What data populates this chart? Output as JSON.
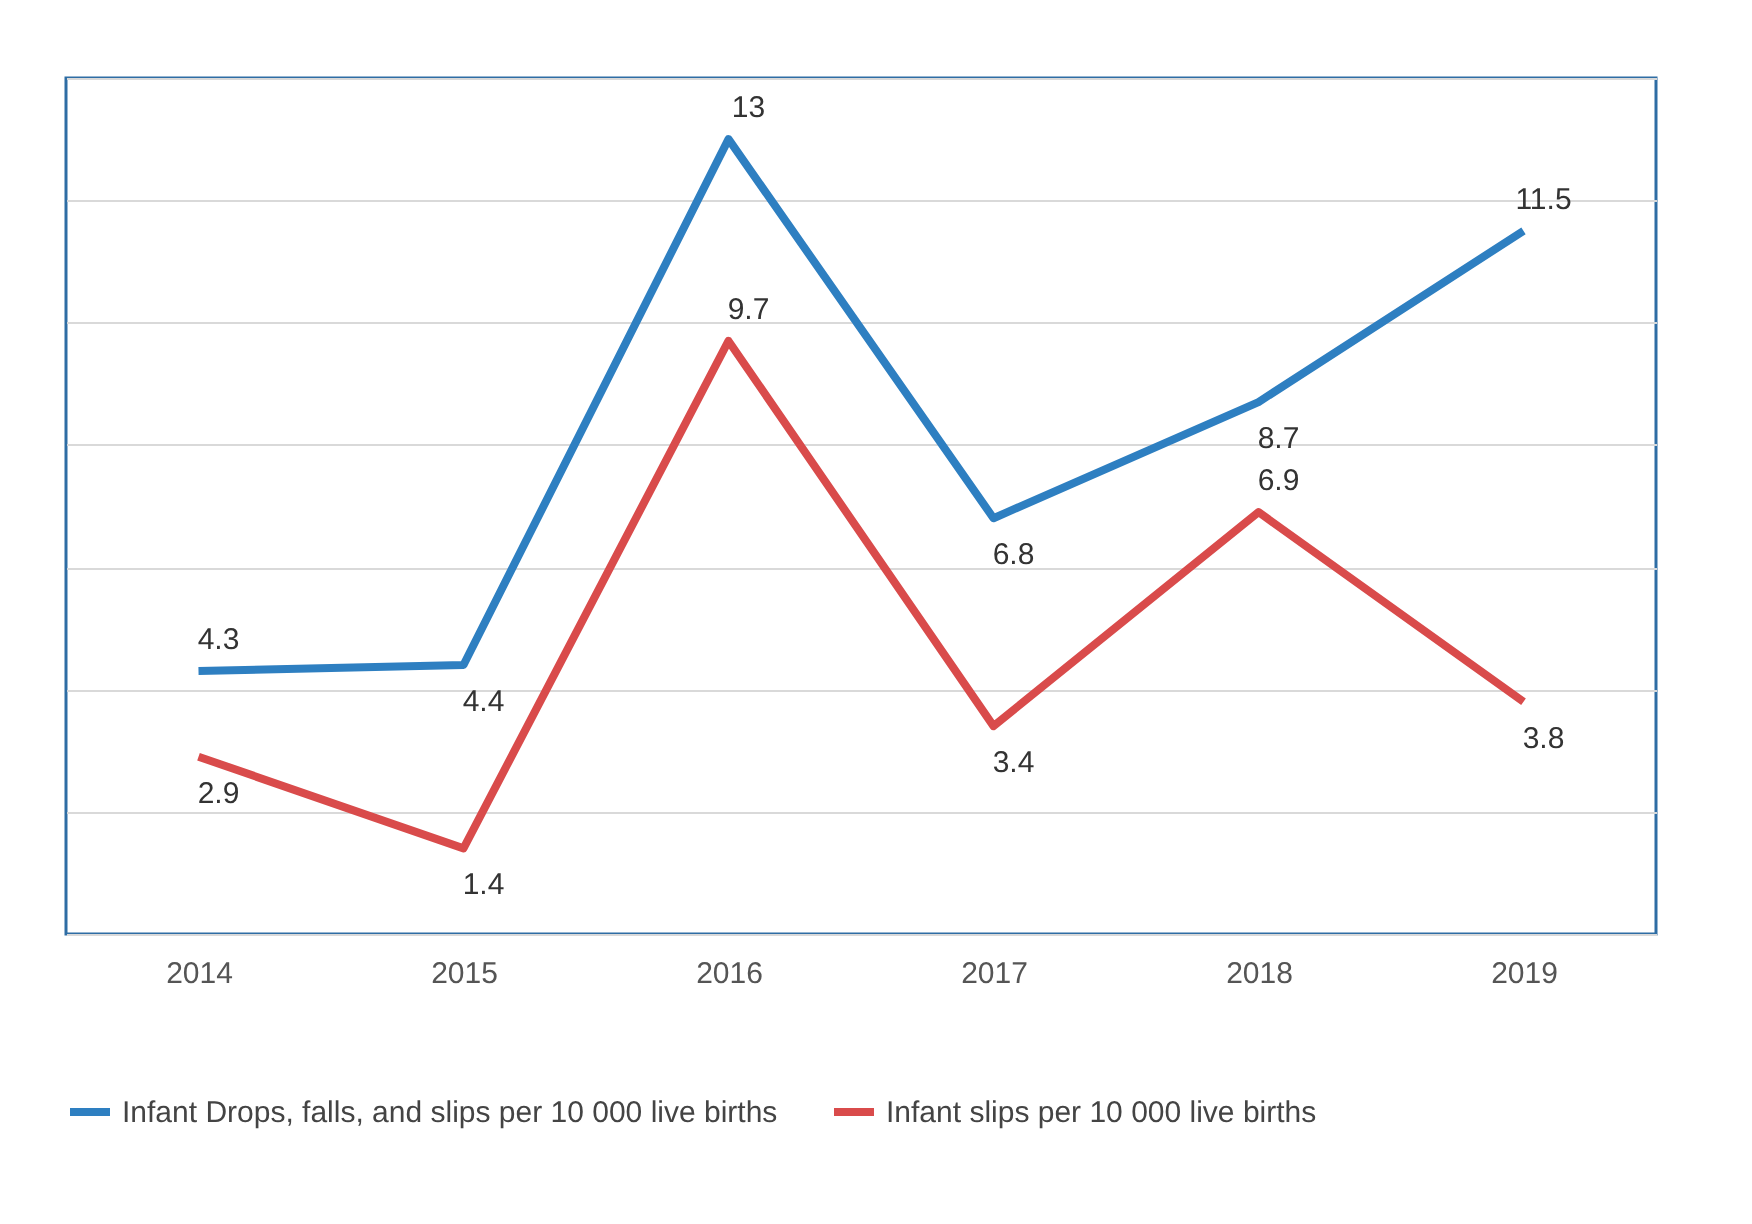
{
  "chart_data": {
    "type": "line",
    "categories": [
      "2014",
      "2015",
      "2016",
      "2017",
      "2018",
      "2019"
    ],
    "series": [
      {
        "name": "Infant Drops, falls, and slips per 10 000 live births",
        "color": "#2e7fc1",
        "values": [
          4.3,
          4.4,
          13,
          6.8,
          8.7,
          11.5
        ]
      },
      {
        "name": "Infant slips per 10 000 live births",
        "color": "#d94b4b",
        "values": [
          2.9,
          1.4,
          9.7,
          3.4,
          6.9,
          3.8
        ]
      }
    ],
    "ylim": [
      0,
      14
    ],
    "yticks": [
      {
        "value": 0,
        "label": null
      },
      {
        "value": 2,
        "label": null
      },
      {
        "value": 4,
        "label": null
      },
      {
        "value": 6,
        "label": null
      },
      {
        "value": 8,
        "label": null
      },
      {
        "value": 10,
        "label": null
      },
      {
        "value": 12,
        "label": null
      },
      {
        "value": 14,
        "label": null
      }
    ],
    "tick_labels": "x",
    "grid": "y",
    "legend": "bottom",
    "data_labels": true,
    "marker": "none",
    "line_style": "solid"
  }
}
